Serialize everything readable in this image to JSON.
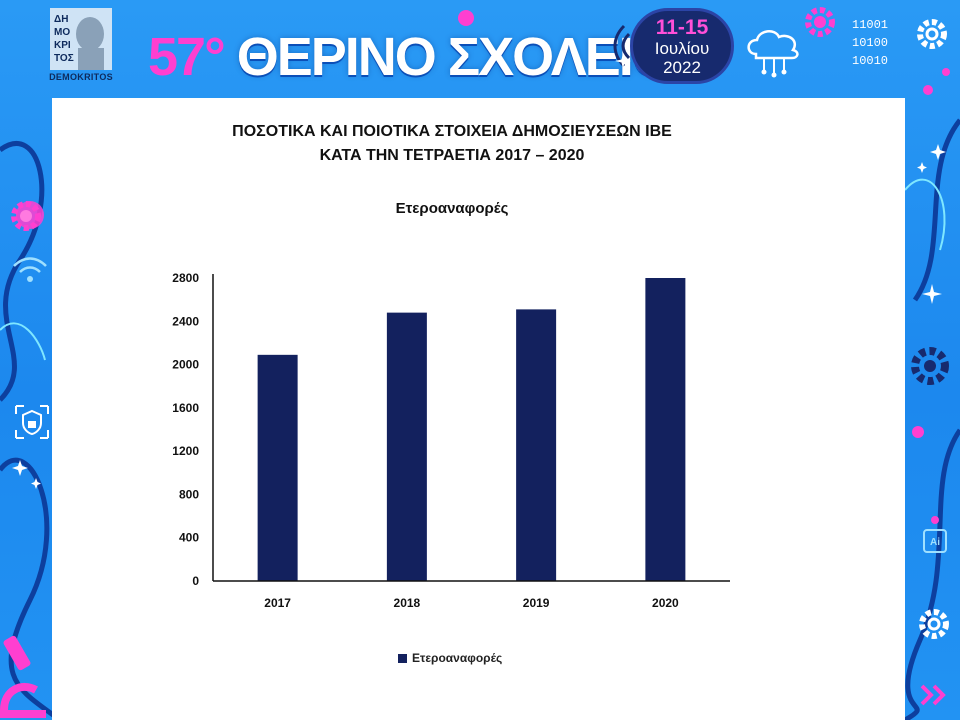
{
  "header": {
    "logo_lines": [
      "ΔΗ",
      "ΜΟ",
      "ΚΡΙ",
      "ΤΟΣ"
    ],
    "logo_caption": "DEMOKRITOS",
    "school_number": "57°",
    "school_name": "ΘΕΡΙΝΟ ΣΧΟΛΕΙΟ",
    "date_days": "11-15",
    "date_month": "Ιουλίου",
    "date_year": "2022",
    "binary": [
      "11001",
      "10100",
      "10010"
    ],
    "icons": [
      "logo-bust-icon",
      "gear-icon",
      "cloud-network-icon",
      "ripple-icon",
      "shield-lock-icon",
      "wifi-icon",
      "sparkle-icon",
      "chevrons-right-icon",
      "ai-chip-icon",
      "microscope-icon"
    ]
  },
  "colors": {
    "frame": "#1e8ff2",
    "accent_pink": "#ff3fd0",
    "badge": "#172a6e",
    "bar": "#13215e",
    "panel": "#ffffff"
  },
  "chart_data": {
    "type": "bar",
    "title": [
      "ΠΟΣΟΤΙΚΑ ΚΑΙ ΠΟΙΟΤΙΚΑ ΣΤΟΙΧΕΙΑ ΔΗΜΟΣΙΕΥΣΕΩΝ ΙΒΕ",
      "ΚΑΤΑ ΤΗΝ ΤΕΤΡΑΕΤΙΑ 2017 – 2020"
    ],
    "subtitle": "Ετεροαναφορές",
    "categories": [
      "2017",
      "2018",
      "2019",
      "2020"
    ],
    "series": [
      {
        "name": "Ετεροαναφορές",
        "values": [
          2090,
          2480,
          2510,
          2800
        ]
      }
    ],
    "yticks": [
      0,
      400,
      800,
      1200,
      1600,
      2000,
      2400,
      2800
    ],
    "ylim": [
      0,
      2800
    ],
    "xlabel": "",
    "ylabel": "",
    "grid": false,
    "legend_position": "bottom-center"
  }
}
